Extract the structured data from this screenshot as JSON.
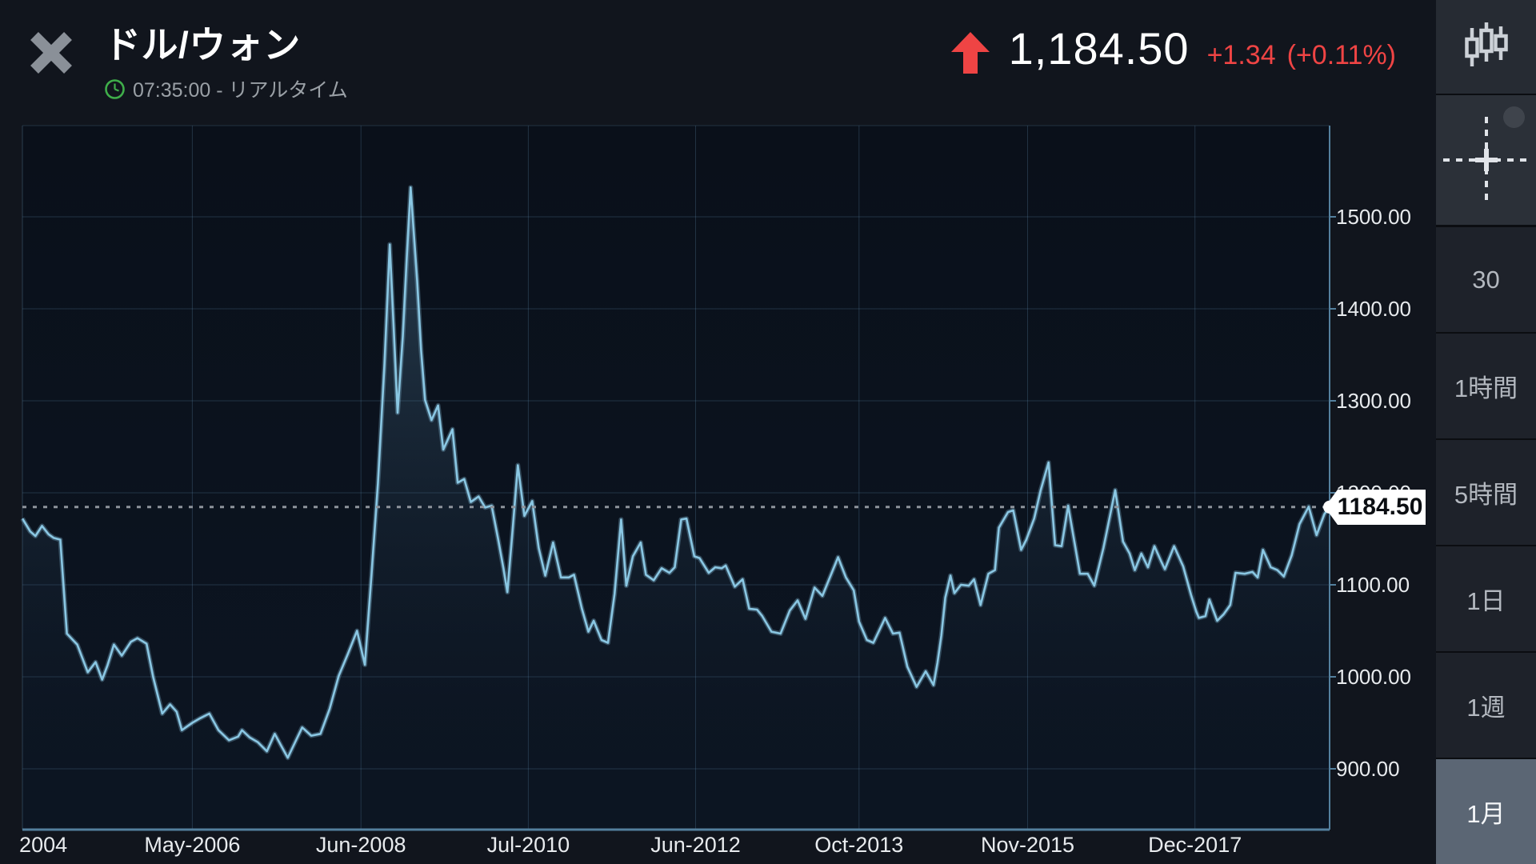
{
  "header": {
    "title": "ドル/ウォン",
    "status_line": "07:35:00 - リアルタイム",
    "price": "1,184.50",
    "change": "+1.34",
    "change_pct": "(+0.11%)"
  },
  "colors": {
    "up_red": "#ef4444",
    "clock_green": "#3fae4a",
    "line_blue": "#8ac7e3",
    "axis_border": "#54809e",
    "grid": "rgba(96,140,175,0.28)",
    "label_text": "#e8ebee",
    "selected_timeframe_bg": "#5b6674",
    "tag_bg": "#ffffff"
  },
  "sidebar": {
    "tools": [
      {
        "icon": "candlestick-chart-icon"
      },
      {
        "icon": "crosshair-icon"
      }
    ],
    "timeframes": [
      {
        "label": "30",
        "selected": false
      },
      {
        "label": "1時間",
        "selected": false
      },
      {
        "label": "5時間",
        "selected": false
      },
      {
        "label": "1日",
        "selected": false
      },
      {
        "label": "1週",
        "selected": false
      },
      {
        "label": "1月",
        "selected": true
      }
    ]
  },
  "chart_data": {
    "type": "area",
    "pair": "ドル/ウォン",
    "current_price": 1184.5,
    "current_price_label": "1184.50",
    "ylim": [
      834,
      1599
    ],
    "grid": true,
    "x_ticks": [
      {
        "label": "2004",
        "pos": 0.016,
        "grid": false
      },
      {
        "label": "May-2006",
        "pos": 0.13,
        "grid": true
      },
      {
        "label": "Jun-2008",
        "pos": 0.259,
        "grid": true
      },
      {
        "label": "Jul-2010",
        "pos": 0.387,
        "grid": true
      },
      {
        "label": "Jun-2012",
        "pos": 0.515,
        "grid": true
      },
      {
        "label": "Oct-2013",
        "pos": 0.64,
        "grid": true
      },
      {
        "label": "Nov-2015",
        "pos": 0.769,
        "grid": true
      },
      {
        "label": "Dec-2017",
        "pos": 0.897,
        "grid": true
      }
    ],
    "y_ticks": [
      {
        "label": "1500.00",
        "value": 1500
      },
      {
        "label": "1400.00",
        "value": 1400
      },
      {
        "label": "1300.00",
        "value": 1300
      },
      {
        "label": "1200.00",
        "value": 1200
      },
      {
        "label": "1100.00",
        "value": 1100
      },
      {
        "label": "1000.00",
        "value": 1000
      },
      {
        "label": "900.00",
        "value": 900
      }
    ],
    "points": [
      [
        0.0,
        1172
      ],
      [
        0.006,
        1158
      ],
      [
        0.01,
        1153
      ],
      [
        0.015,
        1164
      ],
      [
        0.02,
        1155
      ],
      [
        0.024,
        1151
      ],
      [
        0.029,
        1149
      ],
      [
        0.034,
        1047
      ],
      [
        0.042,
        1035
      ],
      [
        0.05,
        1005
      ],
      [
        0.056,
        1016
      ],
      [
        0.061,
        997
      ],
      [
        0.065,
        1012
      ],
      [
        0.07,
        1035
      ],
      [
        0.076,
        1023
      ],
      [
        0.083,
        1038
      ],
      [
        0.088,
        1042
      ],
      [
        0.095,
        1036
      ],
      [
        0.1,
        1000
      ],
      [
        0.107,
        960
      ],
      [
        0.113,
        970
      ],
      [
        0.118,
        962
      ],
      [
        0.122,
        942
      ],
      [
        0.13,
        950
      ],
      [
        0.136,
        955
      ],
      [
        0.143,
        960
      ],
      [
        0.15,
        942
      ],
      [
        0.158,
        931
      ],
      [
        0.165,
        935
      ],
      [
        0.168,
        942
      ],
      [
        0.174,
        934
      ],
      [
        0.18,
        929
      ],
      [
        0.187,
        919
      ],
      [
        0.193,
        938
      ],
      [
        0.198,
        925
      ],
      [
        0.203,
        912
      ],
      [
        0.209,
        930
      ],
      [
        0.214,
        945
      ],
      [
        0.221,
        936
      ],
      [
        0.228,
        938
      ],
      [
        0.235,
        965
      ],
      [
        0.242,
        1001
      ],
      [
        0.249,
        1025
      ],
      [
        0.256,
        1050
      ],
      [
        0.262,
        1013
      ],
      [
        0.267,
        1110
      ],
      [
        0.272,
        1210
      ],
      [
        0.277,
        1340
      ],
      [
        0.281,
        1470
      ],
      [
        0.284,
        1380
      ],
      [
        0.287,
        1287
      ],
      [
        0.291,
        1370
      ],
      [
        0.294,
        1455
      ],
      [
        0.297,
        1532
      ],
      [
        0.302,
        1430
      ],
      [
        0.305,
        1355
      ],
      [
        0.308,
        1301
      ],
      [
        0.313,
        1279
      ],
      [
        0.318,
        1295
      ],
      [
        0.322,
        1247
      ],
      [
        0.329,
        1269
      ],
      [
        0.333,
        1211
      ],
      [
        0.338,
        1215
      ],
      [
        0.343,
        1190
      ],
      [
        0.349,
        1196
      ],
      [
        0.354,
        1184
      ],
      [
        0.359,
        1186
      ],
      [
        0.364,
        1149
      ],
      [
        0.368,
        1118
      ],
      [
        0.371,
        1092
      ],
      [
        0.375,
        1160
      ],
      [
        0.379,
        1230
      ],
      [
        0.384,
        1175
      ],
      [
        0.39,
        1191
      ],
      [
        0.395,
        1140
      ],
      [
        0.4,
        1110
      ],
      [
        0.406,
        1146
      ],
      [
        0.412,
        1108
      ],
      [
        0.418,
        1108
      ],
      [
        0.422,
        1111
      ],
      [
        0.428,
        1074
      ],
      [
        0.433,
        1049
      ],
      [
        0.437,
        1061
      ],
      [
        0.443,
        1040
      ],
      [
        0.448,
        1037
      ],
      [
        0.453,
        1090
      ],
      [
        0.458,
        1171
      ],
      [
        0.462,
        1099
      ],
      [
        0.467,
        1131
      ],
      [
        0.473,
        1146
      ],
      [
        0.477,
        1111
      ],
      [
        0.483,
        1105
      ],
      [
        0.489,
        1118
      ],
      [
        0.495,
        1113
      ],
      [
        0.499,
        1119
      ],
      [
        0.504,
        1171
      ],
      [
        0.508,
        1172
      ],
      [
        0.514,
        1131
      ],
      [
        0.518,
        1129
      ],
      [
        0.525,
        1113
      ],
      [
        0.53,
        1119
      ],
      [
        0.535,
        1118
      ],
      [
        0.538,
        1121
      ],
      [
        0.545,
        1098
      ],
      [
        0.551,
        1106
      ],
      [
        0.556,
        1074
      ],
      [
        0.562,
        1073
      ],
      [
        0.566,
        1066
      ],
      [
        0.573,
        1049
      ],
      [
        0.58,
        1047
      ],
      [
        0.587,
        1072
      ],
      [
        0.593,
        1083
      ],
      [
        0.599,
        1063
      ],
      [
        0.606,
        1097
      ],
      [
        0.612,
        1088
      ],
      [
        0.624,
        1130
      ],
      [
        0.63,
        1108
      ],
      [
        0.636,
        1094
      ],
      [
        0.64,
        1060
      ],
      [
        0.646,
        1040
      ],
      [
        0.651,
        1037
      ],
      [
        0.66,
        1064
      ],
      [
        0.666,
        1047
      ],
      [
        0.671,
        1048
      ],
      [
        0.677,
        1011
      ],
      [
        0.684,
        989
      ],
      [
        0.691,
        1006
      ],
      [
        0.697,
        991
      ],
      [
        0.7,
        1015
      ],
      [
        0.703,
        1045
      ],
      [
        0.706,
        1086
      ],
      [
        0.71,
        1110
      ],
      [
        0.713,
        1091
      ],
      [
        0.718,
        1100
      ],
      [
        0.724,
        1099
      ],
      [
        0.728,
        1106
      ],
      [
        0.733,
        1078
      ],
      [
        0.739,
        1112
      ],
      [
        0.744,
        1116
      ],
      [
        0.747,
        1162
      ],
      [
        0.754,
        1179
      ],
      [
        0.758,
        1181
      ],
      [
        0.764,
        1138
      ],
      [
        0.768,
        1149
      ],
      [
        0.774,
        1172
      ],
      [
        0.779,
        1203
      ],
      [
        0.785,
        1233
      ],
      [
        0.79,
        1143
      ],
      [
        0.795,
        1142
      ],
      [
        0.8,
        1186
      ],
      [
        0.809,
        1112
      ],
      [
        0.815,
        1112
      ],
      [
        0.82,
        1099
      ],
      [
        0.827,
        1140
      ],
      [
        0.836,
        1203
      ],
      [
        0.842,
        1147
      ],
      [
        0.847,
        1134
      ],
      [
        0.851,
        1116
      ],
      [
        0.856,
        1134
      ],
      [
        0.861,
        1119
      ],
      [
        0.866,
        1142
      ],
      [
        0.871,
        1126
      ],
      [
        0.874,
        1117
      ],
      [
        0.881,
        1142
      ],
      [
        0.888,
        1120
      ],
      [
        0.894,
        1089
      ],
      [
        0.898,
        1071
      ],
      [
        0.9,
        1064
      ],
      [
        0.905,
        1066
      ],
      [
        0.908,
        1084
      ],
      [
        0.914,
        1061
      ],
      [
        0.919,
        1068
      ],
      [
        0.924,
        1078
      ],
      [
        0.928,
        1113
      ],
      [
        0.935,
        1112
      ],
      [
        0.941,
        1114
      ],
      [
        0.945,
        1108
      ],
      [
        0.949,
        1138
      ],
      [
        0.955,
        1119
      ],
      [
        0.96,
        1116
      ],
      [
        0.965,
        1109
      ],
      [
        0.971,
        1132
      ],
      [
        0.977,
        1166
      ],
      [
        0.984,
        1185
      ],
      [
        0.99,
        1154
      ],
      [
        0.996,
        1177
      ],
      [
        1.0,
        1184.5
      ]
    ]
  }
}
